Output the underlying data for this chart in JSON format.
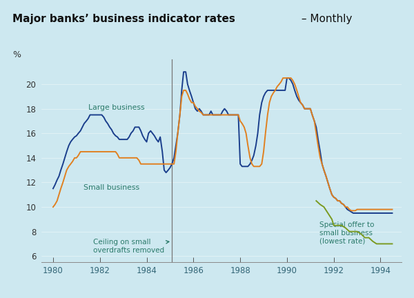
{
  "title_bold": "Major banks’ business indicator rates",
  "title_dash": " – ",
  "title_light": "Monthly",
  "bg_color": "#cde8f0",
  "plot_bg_color": "#cde8f0",
  "large_color": "#1a3e8c",
  "small_color": "#e08020",
  "special_color": "#7a9a20",
  "annotation_color": "#2a7a6a",
  "vline_color": "#777777",
  "vline_x": 1985.08,
  "xlim": [
    1979.5,
    1994.9
  ],
  "ylim": [
    5.5,
    22.0
  ],
  "yticks": [
    6,
    8,
    10,
    12,
    14,
    16,
    18,
    20
  ],
  "xticks": [
    1980,
    1982,
    1984,
    1986,
    1988,
    1990,
    1992,
    1994
  ],
  "large_business_x": [
    1980.0,
    1980.08,
    1980.17,
    1980.25,
    1980.33,
    1980.42,
    1980.5,
    1980.58,
    1980.67,
    1980.75,
    1980.83,
    1980.92,
    1981.0,
    1981.08,
    1981.17,
    1981.25,
    1981.33,
    1981.42,
    1981.5,
    1981.58,
    1981.67,
    1981.75,
    1981.83,
    1981.92,
    1982.0,
    1982.08,
    1982.17,
    1982.25,
    1982.33,
    1982.42,
    1982.5,
    1982.58,
    1982.67,
    1982.75,
    1982.83,
    1982.92,
    1983.0,
    1983.08,
    1983.17,
    1983.25,
    1983.33,
    1983.42,
    1983.5,
    1983.58,
    1983.67,
    1983.75,
    1983.83,
    1983.92,
    1984.0,
    1984.08,
    1984.17,
    1984.25,
    1984.33,
    1984.42,
    1984.5,
    1984.58,
    1984.67,
    1984.75,
    1984.83,
    1984.92,
    1985.0,
    1985.08,
    1985.17,
    1985.25,
    1985.33,
    1985.42,
    1985.5,
    1985.58,
    1985.67,
    1985.75,
    1985.83,
    1985.92,
    1986.0,
    1986.08,
    1986.17,
    1986.25,
    1986.33,
    1986.42,
    1986.5,
    1986.58,
    1986.67,
    1986.75,
    1986.83,
    1986.92,
    1987.0,
    1987.08,
    1987.17,
    1987.25,
    1987.33,
    1987.42,
    1987.5,
    1987.58,
    1987.67,
    1987.75,
    1987.83,
    1987.92,
    1988.0,
    1988.08,
    1988.17,
    1988.25,
    1988.33,
    1988.42,
    1988.5,
    1988.58,
    1988.67,
    1988.75,
    1988.83,
    1988.92,
    1989.0,
    1989.08,
    1989.17,
    1989.25,
    1989.33,
    1989.42,
    1989.5,
    1989.58,
    1989.67,
    1989.75,
    1989.83,
    1989.92,
    1990.0,
    1990.08,
    1990.17,
    1990.25,
    1990.33,
    1990.42,
    1990.5,
    1990.58,
    1990.67,
    1990.75,
    1990.83,
    1990.92,
    1991.0,
    1991.08,
    1991.17,
    1991.25,
    1991.33,
    1991.42,
    1991.5,
    1991.58,
    1991.67,
    1991.75,
    1991.83,
    1991.92,
    1992.0,
    1992.08,
    1992.17,
    1992.25,
    1992.33,
    1992.42,
    1992.5,
    1992.58,
    1992.67,
    1992.75,
    1992.83,
    1992.92,
    1993.0,
    1993.08,
    1993.17,
    1993.25,
    1993.33,
    1993.42,
    1993.5,
    1993.58,
    1993.67,
    1993.75,
    1993.83,
    1993.92,
    1994.0,
    1994.08,
    1994.17,
    1994.25,
    1994.33,
    1994.42,
    1994.5
  ],
  "large_business_y": [
    11.5,
    11.8,
    12.2,
    12.5,
    13.0,
    13.5,
    14.0,
    14.5,
    15.0,
    15.3,
    15.5,
    15.7,
    15.8,
    16.0,
    16.2,
    16.5,
    16.8,
    17.0,
    17.2,
    17.5,
    17.5,
    17.5,
    17.5,
    17.5,
    17.5,
    17.5,
    17.3,
    17.0,
    16.8,
    16.5,
    16.3,
    16.0,
    15.8,
    15.7,
    15.5,
    15.5,
    15.5,
    15.5,
    15.5,
    15.7,
    16.0,
    16.2,
    16.5,
    16.5,
    16.5,
    16.2,
    15.8,
    15.5,
    15.3,
    16.0,
    16.2,
    16.0,
    15.8,
    15.5,
    15.3,
    15.7,
    14.5,
    13.0,
    12.8,
    13.0,
    13.2,
    13.5,
    14.0,
    15.0,
    16.0,
    17.5,
    19.5,
    21.0,
    21.0,
    20.0,
    19.5,
    19.0,
    18.5,
    18.0,
    17.8,
    18.0,
    17.8,
    17.5,
    17.5,
    17.5,
    17.5,
    17.8,
    17.5,
    17.5,
    17.5,
    17.5,
    17.5,
    17.8,
    18.0,
    17.8,
    17.5,
    17.5,
    17.5,
    17.5,
    17.5,
    17.5,
    13.5,
    13.3,
    13.3,
    13.3,
    13.3,
    13.5,
    13.8,
    14.2,
    15.0,
    16.0,
    17.5,
    18.5,
    19.0,
    19.3,
    19.5,
    19.5,
    19.5,
    19.5,
    19.5,
    19.5,
    19.5,
    19.5,
    19.5,
    19.5,
    20.5,
    20.5,
    20.3,
    20.0,
    19.5,
    19.0,
    18.7,
    18.5,
    18.3,
    18.0,
    18.0,
    18.0,
    18.0,
    17.5,
    17.0,
    16.5,
    15.5,
    14.5,
    13.5,
    13.0,
    12.5,
    12.0,
    11.5,
    11.0,
    10.8,
    10.7,
    10.5,
    10.5,
    10.3,
    10.2,
    10.0,
    9.8,
    9.7,
    9.6,
    9.5,
    9.5,
    9.5,
    9.5,
    9.5,
    9.5,
    9.5,
    9.5,
    9.5,
    9.5,
    9.5,
    9.5,
    9.5,
    9.5,
    9.5,
    9.5,
    9.5,
    9.5,
    9.5,
    9.5,
    9.5
  ],
  "small_business_x": [
    1980.0,
    1980.08,
    1980.17,
    1980.25,
    1980.33,
    1980.42,
    1980.5,
    1980.58,
    1980.67,
    1980.75,
    1980.83,
    1980.92,
    1981.0,
    1981.08,
    1981.17,
    1981.25,
    1981.33,
    1981.42,
    1981.5,
    1981.58,
    1981.67,
    1981.75,
    1981.83,
    1981.92,
    1982.0,
    1982.08,
    1982.17,
    1982.25,
    1982.33,
    1982.42,
    1982.5,
    1982.58,
    1982.67,
    1982.75,
    1982.83,
    1982.92,
    1983.0,
    1983.08,
    1983.17,
    1983.25,
    1983.33,
    1983.42,
    1983.5,
    1983.58,
    1983.67,
    1983.75,
    1983.83,
    1983.92,
    1984.0,
    1984.08,
    1984.17,
    1984.25,
    1984.33,
    1984.42,
    1984.5,
    1984.58,
    1984.67,
    1984.75,
    1984.83,
    1984.92,
    1985.0,
    1985.08,
    1985.17,
    1985.25,
    1985.33,
    1985.42,
    1985.5,
    1985.58,
    1985.67,
    1985.75,
    1985.83,
    1985.92,
    1986.0,
    1986.08,
    1986.17,
    1986.25,
    1986.33,
    1986.42,
    1986.5,
    1986.58,
    1986.67,
    1986.75,
    1986.83,
    1986.92,
    1987.0,
    1987.08,
    1987.17,
    1987.25,
    1987.33,
    1987.42,
    1987.5,
    1987.58,
    1987.67,
    1987.75,
    1987.83,
    1987.92,
    1988.0,
    1988.08,
    1988.17,
    1988.25,
    1988.33,
    1988.42,
    1988.5,
    1988.58,
    1988.67,
    1988.75,
    1988.83,
    1988.92,
    1989.0,
    1989.08,
    1989.17,
    1989.25,
    1989.33,
    1989.42,
    1989.5,
    1989.58,
    1989.67,
    1989.75,
    1989.83,
    1989.92,
    1990.0,
    1990.08,
    1990.17,
    1990.25,
    1990.33,
    1990.42,
    1990.5,
    1990.58,
    1990.67,
    1990.75,
    1990.83,
    1990.92,
    1991.0,
    1991.08,
    1991.17,
    1991.25,
    1991.33,
    1991.42,
    1991.5,
    1991.58,
    1991.67,
    1991.75,
    1991.83,
    1991.92,
    1992.0,
    1992.08,
    1992.17,
    1992.25,
    1992.33,
    1992.42,
    1992.5,
    1992.58,
    1992.67,
    1992.75,
    1992.83,
    1992.92,
    1993.0,
    1993.08,
    1993.17,
    1993.25,
    1993.33,
    1993.42,
    1993.5,
    1993.58,
    1993.67,
    1993.75,
    1993.83,
    1993.92,
    1994.0,
    1994.08,
    1994.17,
    1994.25,
    1994.33,
    1994.42,
    1994.5
  ],
  "small_business_y": [
    10.0,
    10.2,
    10.5,
    11.0,
    11.5,
    12.0,
    12.5,
    13.0,
    13.3,
    13.5,
    13.7,
    14.0,
    14.0,
    14.2,
    14.5,
    14.5,
    14.5,
    14.5,
    14.5,
    14.5,
    14.5,
    14.5,
    14.5,
    14.5,
    14.5,
    14.5,
    14.5,
    14.5,
    14.5,
    14.5,
    14.5,
    14.5,
    14.5,
    14.3,
    14.0,
    14.0,
    14.0,
    14.0,
    14.0,
    14.0,
    14.0,
    14.0,
    14.0,
    14.0,
    13.8,
    13.5,
    13.5,
    13.5,
    13.5,
    13.5,
    13.5,
    13.5,
    13.5,
    13.5,
    13.5,
    13.5,
    13.5,
    13.5,
    13.5,
    13.5,
    13.5,
    13.5,
    13.5,
    14.5,
    16.0,
    17.5,
    19.0,
    19.5,
    19.5,
    19.2,
    18.8,
    18.5,
    18.5,
    18.2,
    18.0,
    17.8,
    17.7,
    17.5,
    17.5,
    17.5,
    17.5,
    17.5,
    17.5,
    17.5,
    17.5,
    17.5,
    17.5,
    17.5,
    17.5,
    17.5,
    17.5,
    17.5,
    17.5,
    17.5,
    17.5,
    17.5,
    17.0,
    16.8,
    16.5,
    16.0,
    15.0,
    14.0,
    13.5,
    13.3,
    13.3,
    13.3,
    13.3,
    13.5,
    14.5,
    16.0,
    17.5,
    18.5,
    19.0,
    19.3,
    19.5,
    19.8,
    20.0,
    20.2,
    20.5,
    20.5,
    20.5,
    20.5,
    20.5,
    20.3,
    20.0,
    19.5,
    19.0,
    18.5,
    18.3,
    18.0,
    18.0,
    18.0,
    18.0,
    17.5,
    17.0,
    16.0,
    15.0,
    14.0,
    13.5,
    13.0,
    12.5,
    12.0,
    11.5,
    11.0,
    10.8,
    10.7,
    10.5,
    10.5,
    10.3,
    10.2,
    10.0,
    10.0,
    9.8,
    9.7,
    9.7,
    9.7,
    9.8,
    9.8,
    9.8,
    9.8,
    9.8,
    9.8,
    9.8,
    9.8,
    9.8,
    9.8,
    9.8,
    9.8,
    9.8,
    9.8,
    9.8,
    9.8,
    9.8,
    9.8,
    9.8
  ],
  "special_offer_x": [
    1991.25,
    1991.42,
    1991.58,
    1991.75,
    1991.92,
    1992.0,
    1992.17,
    1992.33,
    1992.5,
    1992.67,
    1992.83,
    1992.92,
    1993.0,
    1993.17,
    1993.33,
    1993.5,
    1993.67,
    1993.83,
    1993.92,
    1994.0,
    1994.17,
    1994.33,
    1994.5
  ],
  "special_offer_y": [
    10.5,
    10.2,
    10.0,
    9.5,
    9.0,
    8.5,
    8.5,
    8.5,
    8.3,
    8.0,
    8.0,
    8.0,
    8.0,
    7.8,
    7.5,
    7.5,
    7.2,
    7.0,
    7.0,
    7.0,
    7.0,
    7.0,
    7.0
  ]
}
